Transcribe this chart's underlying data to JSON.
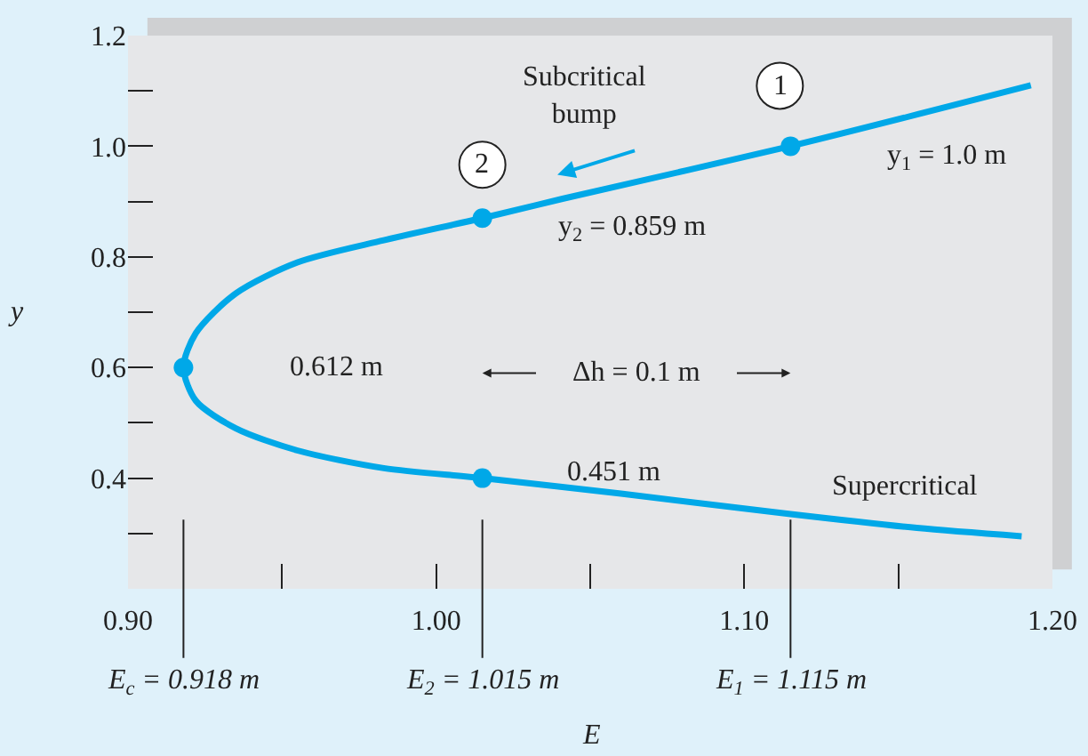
{
  "chart_data": {
    "type": "line",
    "xlabel": "E",
    "ylabel": "y",
    "xlim": [
      0.9,
      1.2
    ],
    "xticks": [
      {
        "value": 0.9,
        "label": "0.90"
      },
      {
        "value": 0.95,
        "label": null
      },
      {
        "value": 1.0,
        "label": "1.00"
      },
      {
        "value": 1.05,
        "label": null
      },
      {
        "value": 1.1,
        "label": "1.10"
      },
      {
        "value": 1.15,
        "label": null
      },
      {
        "value": 1.2,
        "label": "1.20"
      }
    ],
    "ylim": [
      0.2,
      1.2
    ],
    "yticks": [
      {
        "value": 0.3,
        "label": null
      },
      0.4,
      {
        "value": 0.5,
        "label": null
      },
      0.6,
      {
        "value": 0.7,
        "label": null
      },
      0.8,
      {
        "value": 0.9,
        "label": null
      },
      {
        "value": 1.0,
        "label": "1.0"
      },
      {
        "value": 1.1,
        "label": null
      },
      1.2
    ],
    "series": [
      {
        "color": "#00a8e8",
        "x": [
          1.193,
          1.115,
          1.041,
          1.015,
          0.983,
          0.955,
          0.935,
          0.922,
          0.918,
          0.922,
          0.935,
          0.955,
          0.983,
          1.015,
          1.06,
          1.115,
          1.156,
          1.19
        ],
        "values": [
          1.11,
          1.0,
          0.905,
          0.87,
          0.83,
          0.79,
          0.734,
          0.662,
          0.6,
          0.54,
          0.49,
          0.45,
          0.418,
          0.4,
          0.372,
          0.335,
          0.31,
          0.295
        ]
      },
      {
        "type": "scatter",
        "color": "#00a8e8",
        "marker": "circle",
        "x": [
          1.115,
          1.015,
          0.918,
          1.015
        ],
        "values": [
          1.0,
          0.87,
          0.6,
          0.4
        ]
      }
    ],
    "ref_lines": [
      {
        "axis": "x",
        "value": 0.918,
        "label": "E$_{c}$ = 0.918 m"
      },
      {
        "axis": "x",
        "value": 1.015,
        "label": "E$_{2}$ = 1.015 m"
      },
      {
        "axis": "x",
        "value": 1.115,
        "label": "E$_{1}$ = 1.115 m"
      }
    ],
    "annotations": [
      "Subcritical\nbump",
      {
        "text": "1",
        "x": 1.115,
        "y": 1.0
      },
      {
        "text": "2",
        "x": 1.015,
        "y": 0.87
      },
      "y$_{1}$ = 1.0 m",
      "y$_{2}$ = 0.859 m",
      "0.612 m",
      "Δh = 0.1 m",
      "0.451 m",
      "Supercritical"
    ],
    "grid": false
  }
}
